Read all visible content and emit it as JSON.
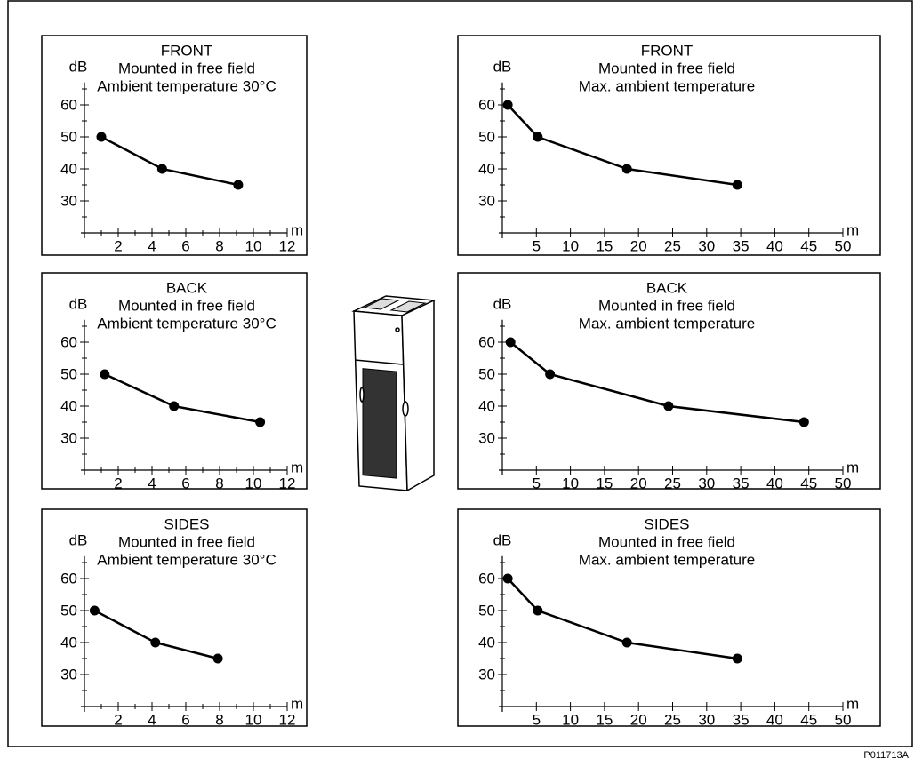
{
  "figure_id": "P011713A",
  "chart_data": [
    {
      "type": "line",
      "title": [
        "FRONT",
        "Mounted in free field",
        "Ambient temperature 30°C"
      ],
      "ylabel": "dB",
      "xlabel": "m",
      "x": [
        1,
        4.6,
        9.1
      ],
      "values": [
        50,
        40,
        35
      ],
      "color": "#000000",
      "xlim": [
        0,
        12
      ],
      "ylim": [
        20,
        67
      ],
      "xticks": [
        2,
        4,
        6,
        8,
        10,
        12
      ],
      "xminorticks": [
        1,
        3,
        5,
        7,
        9,
        11
      ],
      "yticks": [
        30,
        40,
        50,
        60
      ],
      "yminorticks": [
        25,
        35,
        45,
        55,
        65
      ]
    },
    {
      "type": "line",
      "title": [
        "FRONT",
        "Mounted in free field",
        "Max. ambient temperature"
      ],
      "ylabel": "dB",
      "xlabel": "m",
      "x": [
        0.8,
        5.2,
        18.3,
        34.5
      ],
      "values": [
        60,
        50,
        40,
        35
      ],
      "color": "#000000",
      "xlim": [
        0,
        50
      ],
      "ylim": [
        20,
        67
      ],
      "xticks": [
        5,
        10,
        15,
        20,
        25,
        30,
        35,
        40,
        45,
        50
      ],
      "yticks": [
        30,
        40,
        50,
        60
      ],
      "yminorticks": [
        25,
        35,
        45,
        55,
        65
      ]
    },
    {
      "type": "line",
      "title": [
        "BACK",
        "Mounted in free field",
        "Ambient temperature 30°C"
      ],
      "ylabel": "dB",
      "xlabel": "m",
      "x": [
        1.2,
        5.3,
        10.4
      ],
      "values": [
        50,
        40,
        35
      ],
      "color": "#000000",
      "xlim": [
        0,
        12
      ],
      "ylim": [
        20,
        67
      ],
      "xticks": [
        2,
        4,
        6,
        8,
        10,
        12
      ],
      "xminorticks": [
        1,
        3,
        5,
        7,
        9,
        11
      ],
      "yticks": [
        30,
        40,
        50,
        60
      ],
      "yminorticks": [
        25,
        35,
        45,
        55,
        65
      ]
    },
    {
      "type": "line",
      "title": [
        "BACK",
        "Mounted in free field",
        "Max. ambient temperature"
      ],
      "ylabel": "dB",
      "xlabel": "m",
      "x": [
        1.2,
        7,
        24.4,
        44.3
      ],
      "values": [
        60,
        50,
        40,
        35
      ],
      "color": "#000000",
      "xlim": [
        0,
        50
      ],
      "ylim": [
        20,
        67
      ],
      "xticks": [
        5,
        10,
        15,
        20,
        25,
        30,
        35,
        40,
        45,
        50
      ],
      "yticks": [
        30,
        40,
        50,
        60
      ],
      "yminorticks": [
        25,
        35,
        45,
        55,
        65
      ]
    },
    {
      "type": "line",
      "title": [
        "SIDES",
        "Mounted in free field",
        "Ambient temperature 30°C"
      ],
      "ylabel": "dB",
      "xlabel": "m",
      "x": [
        0.6,
        4.2,
        7.9
      ],
      "values": [
        50,
        40,
        35
      ],
      "color": "#000000",
      "xlim": [
        0,
        12
      ],
      "ylim": [
        20,
        67
      ],
      "xticks": [
        2,
        4,
        6,
        8,
        10,
        12
      ],
      "xminorticks": [
        1,
        3,
        5,
        7,
        9,
        11
      ],
      "yticks": [
        30,
        40,
        50,
        60
      ],
      "yminorticks": [
        25,
        35,
        45,
        55,
        65
      ]
    },
    {
      "type": "line",
      "title": [
        "SIDES",
        "Mounted in free field",
        "Max. ambient temperature"
      ],
      "ylabel": "dB",
      "xlabel": "m",
      "x": [
        0.8,
        5.2,
        18.3,
        34.5
      ],
      "values": [
        60,
        50,
        40,
        35
      ],
      "color": "#000000",
      "xlim": [
        0,
        50
      ],
      "ylim": [
        20,
        67
      ],
      "xticks": [
        5,
        10,
        15,
        20,
        25,
        30,
        35,
        40,
        45,
        50
      ],
      "yticks": [
        30,
        40,
        50,
        60
      ],
      "yminorticks": [
        25,
        35,
        45,
        55,
        65
      ]
    }
  ]
}
